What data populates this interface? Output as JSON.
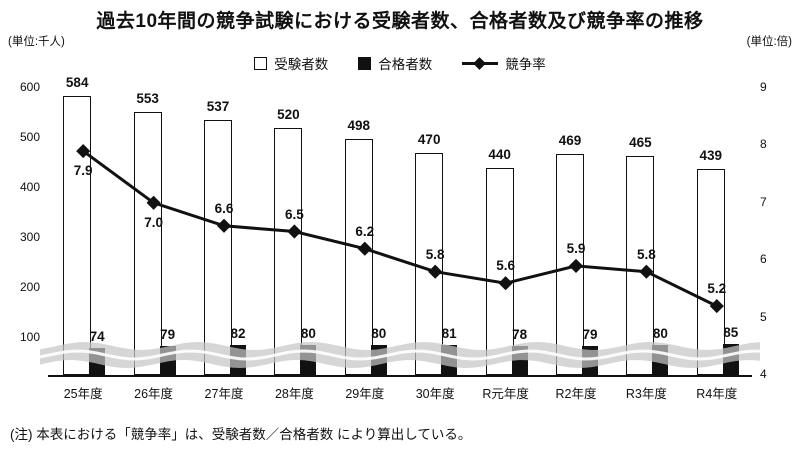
{
  "chart_data": {
    "type": "combo",
    "title": "過去10年間の競争試験における受験者数、合格者数及び競争率の推移",
    "unit_left": "(単位:千人)",
    "unit_right": "(単位:倍)",
    "note": "(注) 本表における「競争率」は、受験者数／合格者数 により算出している。",
    "categories": [
      "25年度",
      "26年度",
      "27年度",
      "28年度",
      "29年度",
      "30年度",
      "R元年度",
      "R2年度",
      "R3年度",
      "R4年度"
    ],
    "series": [
      {
        "name": "受験者数",
        "kind": "bar",
        "color": "#ffffff",
        "values": [
          584,
          553,
          537,
          520,
          498,
          470,
          440,
          469,
          465,
          439
        ]
      },
      {
        "name": "合格者数",
        "kind": "bar",
        "color": "#111111",
        "values": [
          74,
          79,
          82,
          80,
          80,
          81,
          78,
          79,
          80,
          85
        ]
      },
      {
        "name": "競争率",
        "kind": "line",
        "color": "#111111",
        "values": [
          7.9,
          7.0,
          6.6,
          6.5,
          6.2,
          5.8,
          5.6,
          5.9,
          5.8,
          5.2
        ]
      }
    ],
    "left_axis": {
      "ticks": [
        600,
        500,
        400,
        300,
        200,
        100
      ],
      "break": true
    },
    "right_axis": {
      "ticks": [
        9,
        8,
        7,
        6,
        5,
        4
      ],
      "range": [
        4,
        9
      ]
    },
    "rate_label_side": [
      "below",
      "below",
      "above",
      "above",
      "above",
      "above",
      "above",
      "above",
      "above",
      "above"
    ],
    "colors": {
      "band": "#c6c6c6",
      "axis": "#111111",
      "line": "#111111"
    },
    "grid": false,
    "legend_position": "top-center"
  }
}
